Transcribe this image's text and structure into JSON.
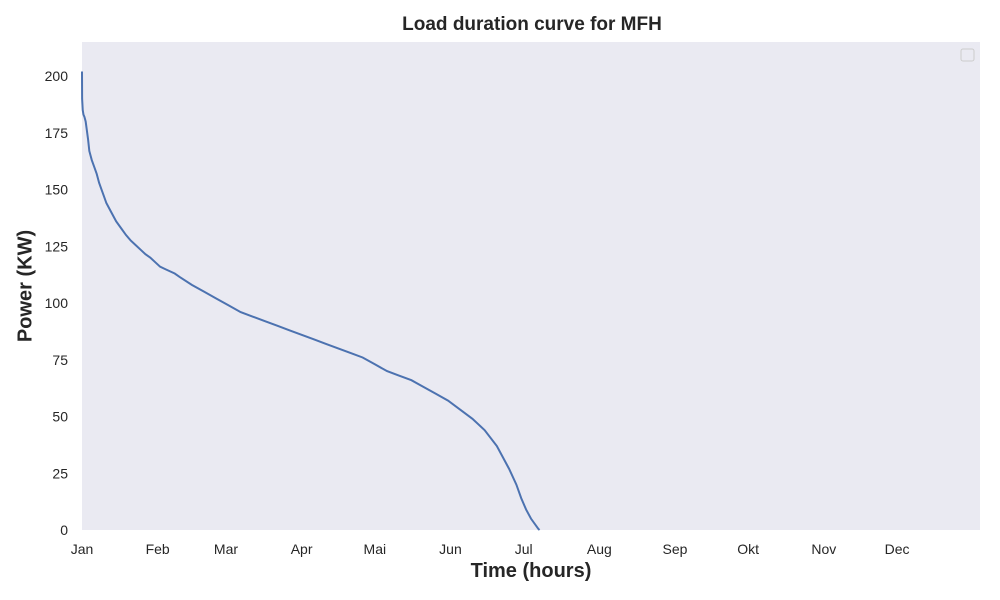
{
  "chart_data": {
    "type": "line",
    "title": "Load duration curve for MFH",
    "xlabel": "Time (hours)",
    "ylabel": "Power (KW)",
    "ylim": [
      0,
      215
    ],
    "yticks": [
      0,
      25,
      50,
      75,
      100,
      125,
      150,
      175,
      200
    ],
    "xticks": [
      "Jan",
      "Feb",
      "Mar",
      "Apr",
      "Mai",
      "Jun",
      "Jul",
      "Aug",
      "Sep",
      "Okt",
      "Nov",
      "Dec"
    ],
    "xtick_days": [
      0,
      31,
      59,
      90,
      120,
      151,
      181,
      212,
      243,
      273,
      304,
      334
    ],
    "xlim_days": [
      0,
      368
    ],
    "grid": false,
    "legend": "top-right (empty)",
    "background": "#eaeaf2",
    "series": [
      {
        "color": "#4c72b0",
        "x_days": [
          0,
          0.05,
          0.3,
          0.6,
          1,
          1.5,
          2,
          2.5,
          3,
          4,
          5,
          6,
          7,
          8,
          9,
          10,
          12,
          14,
          16,
          18,
          20,
          22,
          24,
          26,
          28,
          30,
          32,
          34,
          36,
          38,
          40,
          45,
          50,
          55,
          60,
          65,
          70,
          75,
          80,
          85,
          90,
          95,
          100,
          105,
          110,
          115,
          120,
          125,
          130,
          135,
          140,
          145,
          150,
          155,
          160,
          165,
          170,
          175,
          178,
          180,
          182,
          184,
          186,
          187,
          187.5
        ],
        "y_kw": [
          202,
          190,
          185,
          183,
          182,
          180,
          176,
          172,
          167,
          163,
          160,
          157,
          153,
          150,
          147,
          144,
          140,
          136,
          133,
          130,
          127.5,
          125.5,
          123.5,
          121.5,
          120,
          118,
          116,
          115,
          114,
          113,
          111.5,
          108,
          105,
          102,
          99,
          96,
          94,
          92,
          90,
          88,
          86,
          84,
          82,
          80,
          78,
          76,
          73,
          70,
          68,
          66,
          63,
          60,
          57,
          53,
          49,
          44,
          37,
          27,
          20,
          14,
          9,
          5,
          2,
          0.5,
          0
        ]
      }
    ]
  }
}
